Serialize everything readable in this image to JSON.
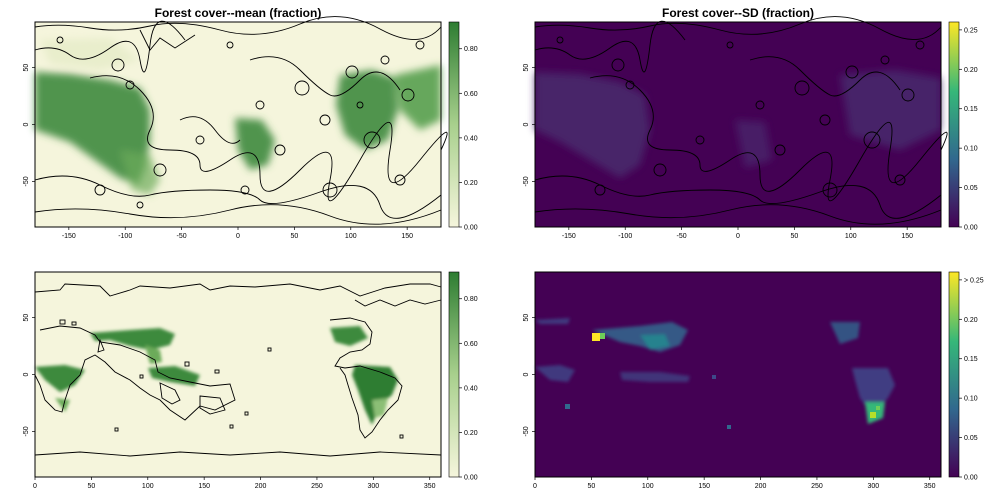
{
  "chart_data": [
    {
      "type": "heatmap",
      "title": "Forest cover--mean (fraction)",
      "xlabel": "",
      "ylabel": "",
      "xlim": [
        -180,
        180
      ],
      "ylim": [
        -90,
        90
      ],
      "x_ticks": [
        "-150",
        "-100",
        "-50",
        "0",
        "50",
        "100",
        "150"
      ],
      "y_ticks": [
        "50",
        "0",
        "-50"
      ],
      "colorbar": {
        "ticks": [
          "0.80",
          "0.60",
          "0.40",
          "0.20",
          "0.00"
        ],
        "range": [
          0,
          0.92
        ],
        "colors": [
          "#f5f5dc",
          "#a8d08d",
          "#2e7d32"
        ]
      },
      "background_color": "#f5f5dc"
    },
    {
      "type": "heatmap",
      "title": "Forest cover--SD (fraction)",
      "xlabel": "",
      "ylabel": "",
      "xlim": [
        -180,
        180
      ],
      "ylim": [
        -90,
        90
      ],
      "x_ticks": [
        "-150",
        "-100",
        "-50",
        "0",
        "50",
        "100",
        "150"
      ],
      "y_ticks": [
        "50",
        "0",
        "-50"
      ],
      "colorbar": {
        "ticks": [
          "0.25",
          "0.20",
          "0.15",
          "0.10",
          "0.05",
          "0.00"
        ],
        "range": [
          0,
          0.26
        ],
        "colors": [
          "#440154",
          "#31688e",
          "#35b779",
          "#fde725"
        ]
      },
      "background_color": "#440154"
    },
    {
      "type": "heatmap",
      "title": "",
      "xlabel": "",
      "ylabel": "",
      "xlim": [
        0,
        360
      ],
      "ylim": [
        -90,
        90
      ],
      "x_ticks": [
        "0",
        "50",
        "100",
        "150",
        "200",
        "250",
        "300",
        "350"
      ],
      "y_ticks": [
        "50",
        "0",
        "-50"
      ],
      "colorbar": {
        "ticks": [
          "0.80",
          "0.60",
          "0.40",
          "0.20",
          "0.00"
        ],
        "range": [
          0,
          0.92
        ],
        "colors": [
          "#f5f5dc",
          "#a8d08d",
          "#2e7d32"
        ]
      },
      "background_color": "#f5f5dc"
    },
    {
      "type": "heatmap",
      "title": "",
      "xlabel": "",
      "ylabel": "",
      "xlim": [
        0,
        360
      ],
      "ylim": [
        -90,
        90
      ],
      "x_ticks": [
        "0",
        "50",
        "100",
        "150",
        "200",
        "250",
        "300",
        "350"
      ],
      "y_ticks": [
        "50",
        "0",
        "-50"
      ],
      "colorbar": {
        "ticks": [
          "> 0.25",
          "0.20",
          "0.15",
          "0.10",
          "0.05",
          "0.00"
        ],
        "range": [
          0,
          0.26
        ],
        "colors": [
          "#440154",
          "#31688e",
          "#35b779",
          "#fde725"
        ]
      },
      "background_color": "#440154"
    }
  ]
}
